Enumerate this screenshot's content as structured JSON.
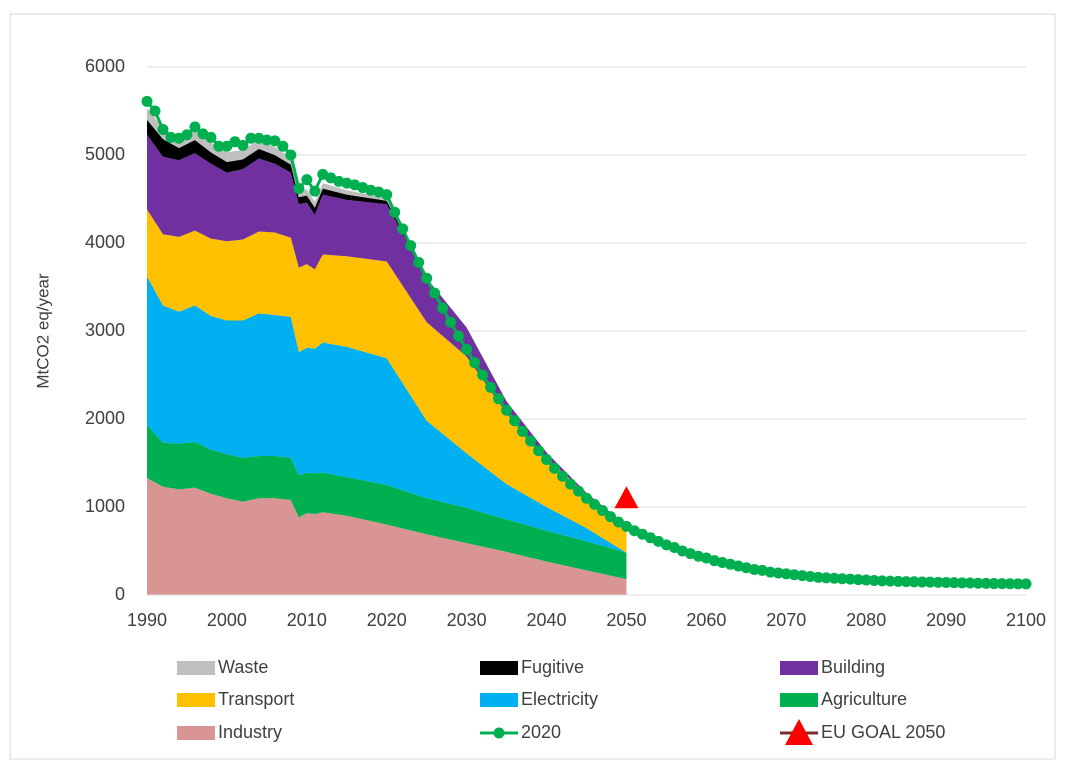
{
  "chart_data": {
    "type": "area",
    "stacked": true,
    "y_label": "MtCO2 eq/year",
    "x": [
      1990,
      1992,
      1994,
      1996,
      1998,
      2000,
      2002,
      2004,
      2006,
      2008,
      2009,
      2010,
      2011,
      2012,
      2015,
      2020,
      2025,
      2030,
      2035,
      2040,
      2045,
      2050
    ],
    "series": [
      {
        "name": "Industry",
        "type": "area",
        "color": "#d99594",
        "values": [
          1330,
          1230,
          1200,
          1220,
          1150,
          1100,
          1060,
          1100,
          1100,
          1080,
          880,
          930,
          920,
          940,
          900,
          800,
          690,
          590,
          490,
          380,
          280,
          180
        ]
      },
      {
        "name": "Agriculture",
        "type": "area",
        "color": "#00b050",
        "values": [
          600,
          500,
          520,
          520,
          500,
          500,
          500,
          480,
          480,
          480,
          480,
          460,
          460,
          450,
          440,
          450,
          410,
          400,
          370,
          350,
          330,
          300
        ]
      },
      {
        "name": "Electricity",
        "type": "area",
        "color": "#00b0f0",
        "values": [
          1690,
          1560,
          1500,
          1550,
          1520,
          1520,
          1560,
          1620,
          1600,
          1600,
          1400,
          1420,
          1420,
          1480,
          1480,
          1440,
          880,
          620,
          400,
          270,
          150,
          0
        ]
      },
      {
        "name": "Transport",
        "type": "area",
        "color": "#ffc000",
        "values": [
          760,
          810,
          850,
          850,
          880,
          900,
          920,
          930,
          940,
          900,
          960,
          950,
          900,
          1000,
          1030,
          1100,
          1120,
          1100,
          800,
          560,
          380,
          310
        ]
      },
      {
        "name": "Building",
        "type": "area",
        "color": "#7030a0",
        "values": [
          850,
          880,
          870,
          880,
          850,
          780,
          800,
          830,
          780,
          740,
          720,
          700,
          620,
          680,
          640,
          650,
          500,
          330,
          140,
          60,
          20,
          0
        ]
      },
      {
        "name": "Fugitive",
        "type": "area",
        "color": "#000000",
        "values": [
          170,
          200,
          140,
          150,
          130,
          120,
          110,
          110,
          100,
          90,
          80,
          80,
          80,
          70,
          60,
          40,
          0,
          0,
          0,
          0,
          0,
          0
        ]
      },
      {
        "name": "Waste",
        "type": "area",
        "color": "#bfbfbf",
        "values": [
          130,
          130,
          110,
          110,
          110,
          110,
          110,
          100,
          90,
          80,
          80,
          70,
          70,
          60,
          50,
          30,
          0,
          0,
          0,
          0,
          0,
          0
        ]
      },
      {
        "name": "2020",
        "type": "line",
        "color": "#00b050",
        "x": [
          1990,
          1991,
          1992,
          1993,
          1994,
          1995,
          1996,
          1997,
          1998,
          1999,
          2000,
          2001,
          2002,
          2003,
          2004,
          2005,
          2006,
          2007,
          2008,
          2009,
          2010,
          2011,
          2012,
          2013,
          2014,
          2015,
          2016,
          2017,
          2018,
          2019,
          2020,
          2021,
          2022,
          2023,
          2024,
          2025,
          2026,
          2027,
          2028,
          2029,
          2030,
          2031,
          2032,
          2033,
          2034,
          2035,
          2036,
          2037,
          2038,
          2039,
          2040,
          2041,
          2042,
          2043,
          2044,
          2045,
          2046,
          2047,
          2048,
          2049,
          2050,
          2051,
          2052,
          2053,
          2054,
          2055,
          2056,
          2057,
          2058,
          2059,
          2060,
          2061,
          2062,
          2063,
          2064,
          2065,
          2066,
          2067,
          2068,
          2069,
          2070,
          2071,
          2072,
          2073,
          2074,
          2075,
          2076,
          2077,
          2078,
          2079,
          2080,
          2081,
          2082,
          2083,
          2084,
          2085,
          2086,
          2087,
          2088,
          2089,
          2090,
          2091,
          2092,
          2093,
          2094,
          2095,
          2096,
          2097,
          2098,
          2099,
          2100
        ],
        "values": [
          5610,
          5500,
          5290,
          5200,
          5190,
          5230,
          5320,
          5240,
          5200,
          5100,
          5100,
          5150,
          5110,
          5190,
          5190,
          5170,
          5160,
          5100,
          5000,
          4620,
          4720,
          4590,
          4780,
          4740,
          4700,
          4680,
          4660,
          4630,
          4600,
          4580,
          4550,
          4350,
          4160,
          3970,
          3780,
          3600,
          3430,
          3260,
          3100,
          2940,
          2790,
          2640,
          2500,
          2360,
          2230,
          2100,
          1980,
          1860,
          1750,
          1640,
          1540,
          1440,
          1350,
          1260,
          1180,
          1100,
          1030,
          960,
          890,
          830,
          780,
          730,
          690,
          650,
          610,
          570,
          540,
          500,
          470,
          440,
          420,
          390,
          370,
          350,
          330,
          310,
          290,
          280,
          260,
          250,
          240,
          230,
          220,
          210,
          200,
          195,
          190,
          185,
          180,
          175,
          170,
          165,
          160,
          158,
          155,
          152,
          150,
          148,
          146,
          144,
          142,
          140,
          138,
          136,
          134,
          132,
          130,
          129,
          128,
          127,
          126
        ]
      },
      {
        "name": "EU GOAL 2050",
        "type": "scatter",
        "color": "#ff0000",
        "x": [
          2050
        ],
        "values": [
          1100
        ]
      }
    ],
    "xlim": [
      1990,
      2100
    ],
    "xticks": [
      1990,
      2000,
      2010,
      2020,
      2030,
      2040,
      2050,
      2060,
      2070,
      2080,
      2090,
      2100
    ],
    "ylim": [
      0,
      6000
    ],
    "yticks": [
      0,
      1000,
      2000,
      3000,
      4000,
      5000,
      6000
    ],
    "grid": true,
    "legend": "bottom"
  }
}
